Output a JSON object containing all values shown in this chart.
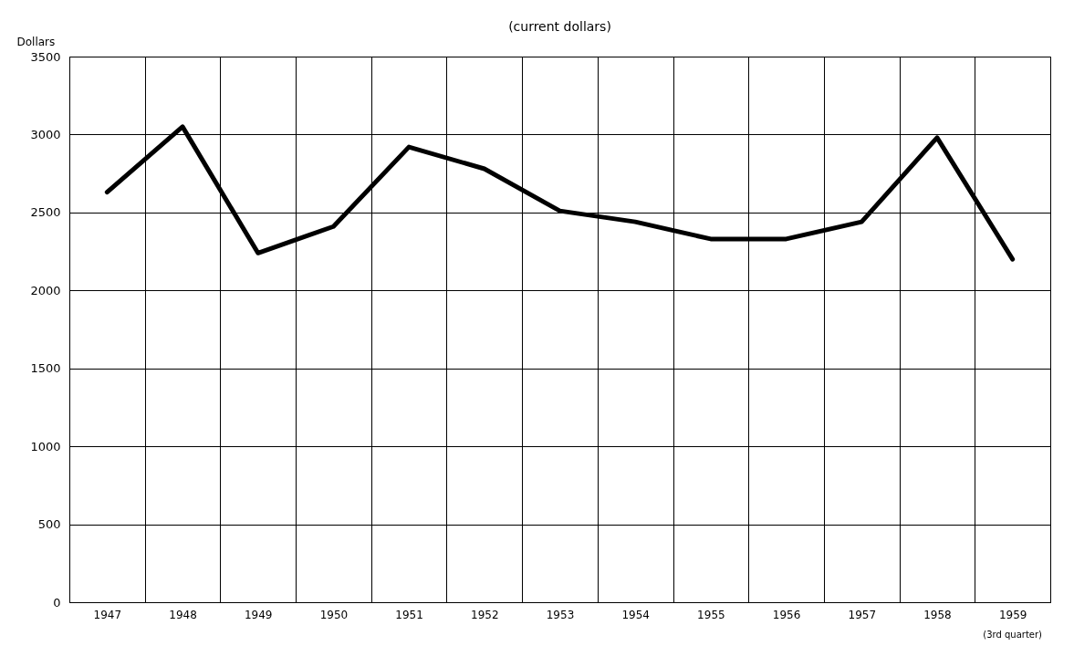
{
  "chart_data": {
    "type": "line",
    "title": "(current dollars)",
    "ylabel": "Dollars",
    "categories": [
      "1947",
      "1948",
      "1949",
      "1950",
      "1951",
      "1952",
      "1953",
      "1954",
      "1955",
      "1956",
      "1957",
      "1958",
      "1959"
    ],
    "series": [
      {
        "color": "#000000",
        "values": [
          2630,
          3050,
          2240,
          2410,
          2920,
          2780,
          2510,
          2440,
          2330,
          2330,
          2440,
          2980,
          2200
        ]
      }
    ],
    "annotations": [
      "(3rd quarter)"
    ],
    "ylim": [
      0,
      3500
    ],
    "yticks": [
      0,
      500,
      1000,
      1500,
      2000,
      2500,
      3000,
      3500
    ],
    "grid": true,
    "line_style": "solid"
  }
}
